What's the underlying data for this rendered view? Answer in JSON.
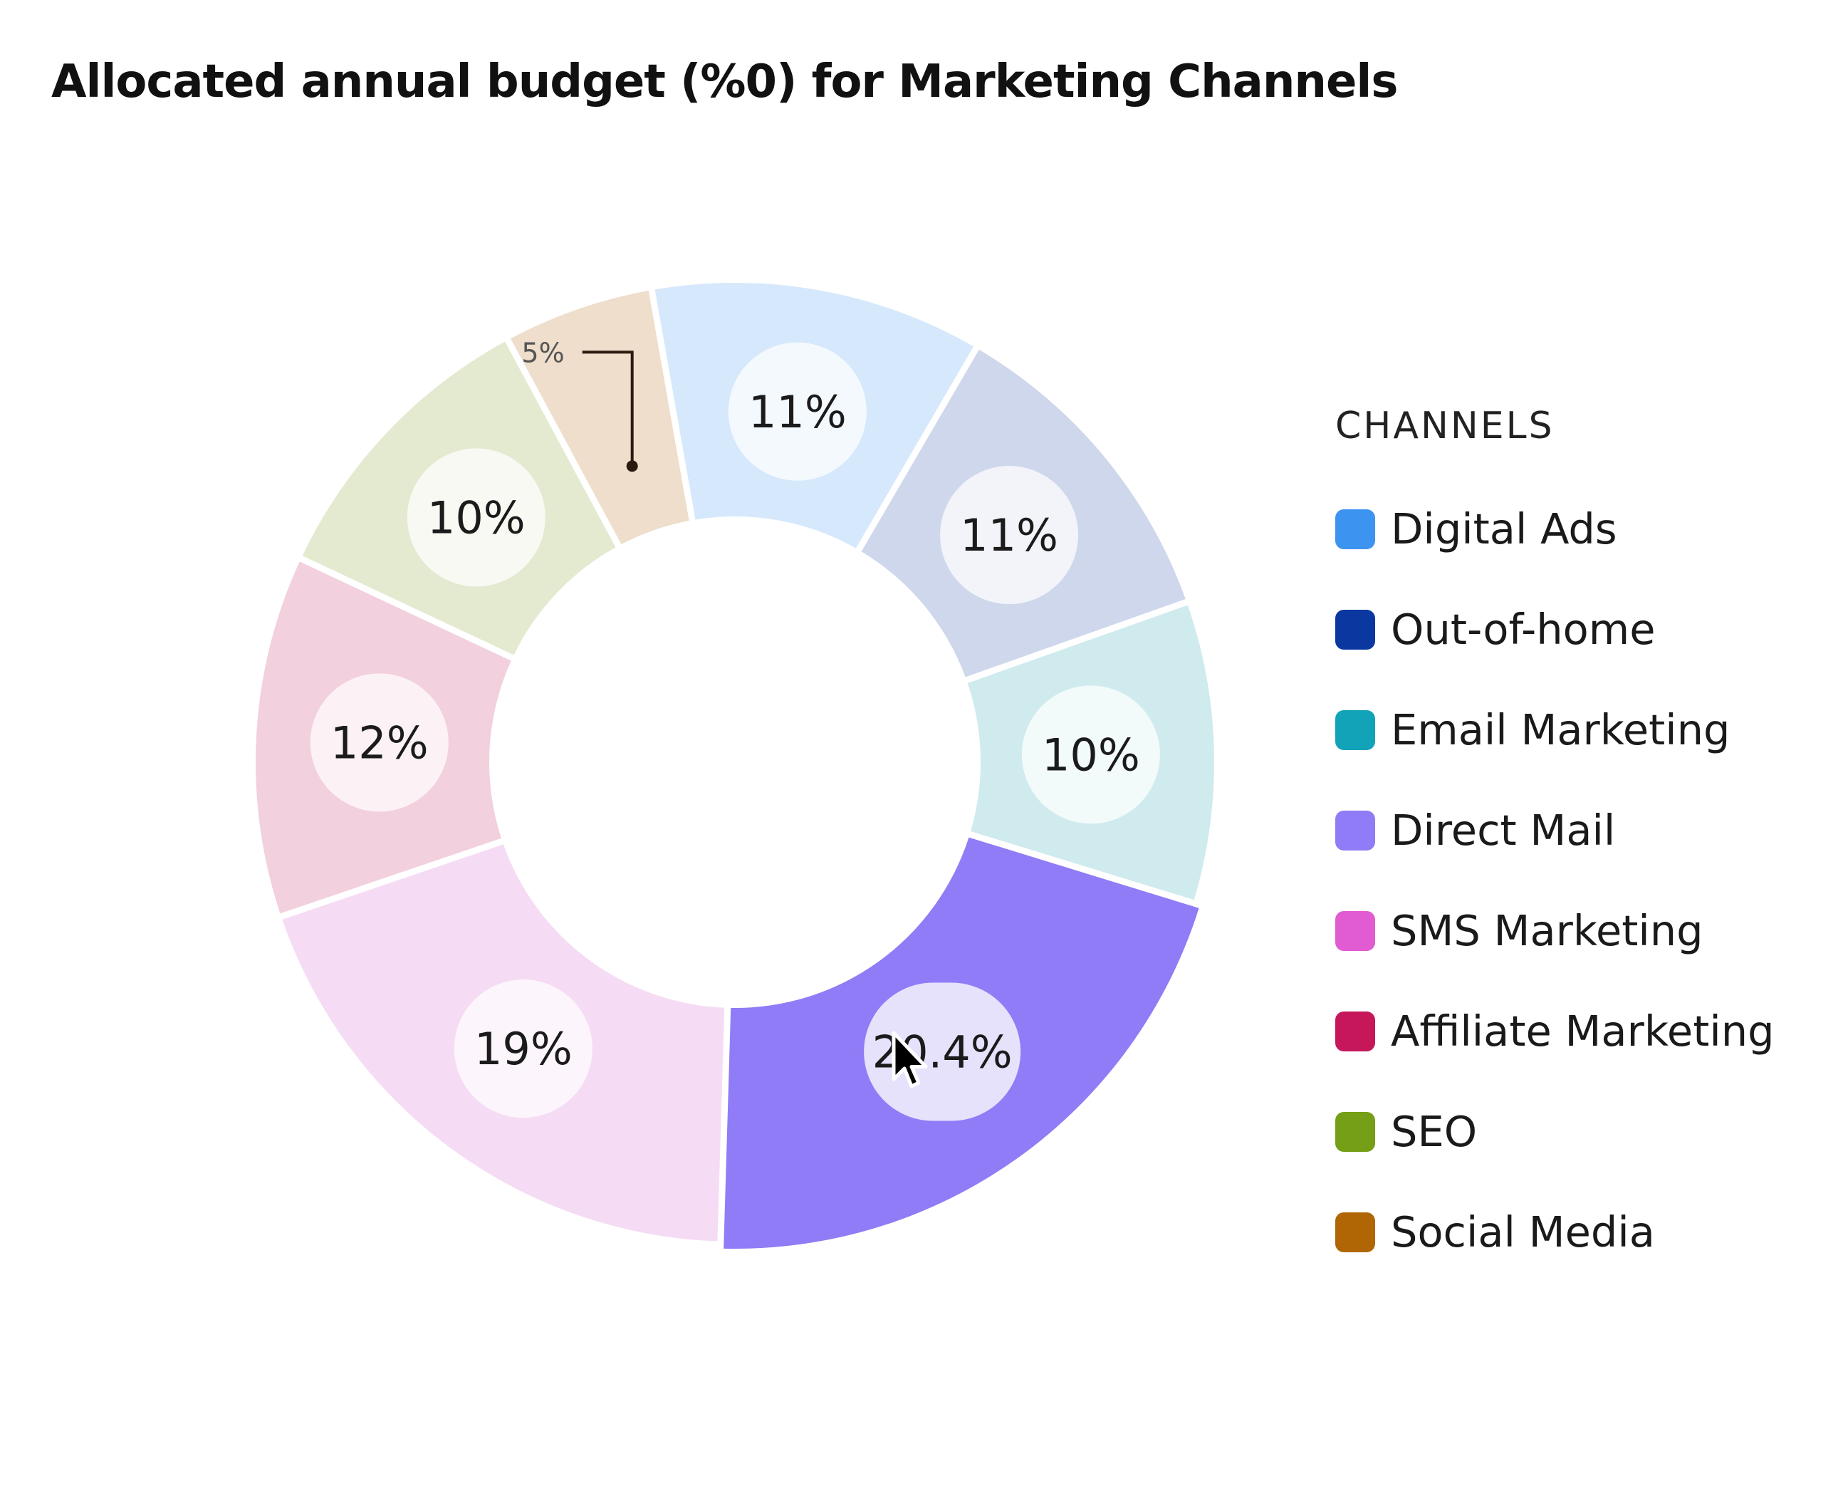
{
  "title": "Allocated annual budget (%0) for Marketing Channels",
  "legend": {
    "title": "CHANNELS",
    "items": [
      {
        "label": "Digital Ads",
        "color": "#3D93F0"
      },
      {
        "label": "Out-of-home",
        "color": "#0B37A1"
      },
      {
        "label": "Email Marketing",
        "color": "#12A3B8"
      },
      {
        "label": "Direct Mail",
        "color": "#8F7CF6"
      },
      {
        "label": "SMS Marketing",
        "color": "#E15BD2"
      },
      {
        "label": "Affiliate Marketing",
        "color": "#C5175A"
      },
      {
        "label": "SEO",
        "color": "#749F16"
      },
      {
        "label": "Social Media",
        "color": "#B06604"
      }
    ]
  },
  "chart_data": {
    "type": "pie",
    "variant": "donut",
    "title": "Allocated annual budget (%0) for Marketing Channels",
    "categories": [
      "Digital Ads",
      "Out-of-home",
      "Email Marketing",
      "Direct Mail",
      "SMS Marketing",
      "Affiliate Marketing",
      "SEO",
      "Social Media"
    ],
    "values": [
      11,
      11,
      10,
      20.4,
      19,
      12,
      10,
      5
    ],
    "labels": [
      "11%",
      "11%",
      "10%",
      "20.4%",
      "19%",
      "12%",
      "10%",
      "5%"
    ],
    "slice_colors": [
      "#D6E8FC",
      "#CFD7EC",
      "#CFEBEE",
      "#8F7CF6",
      "#F5DCF4",
      "#F2D0DE",
      "#E3EAD0",
      "#EEDECB"
    ],
    "highlighted": "Direct Mail",
    "legend_position": "right"
  }
}
